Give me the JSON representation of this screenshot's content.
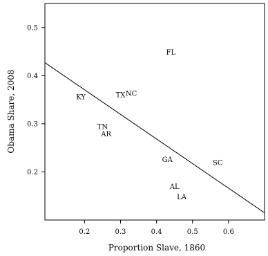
{
  "chart_data": {
    "type": "scatter",
    "xlabel": "Proportion Slave, 1860",
    "ylabel": "Obama Share, 2008",
    "xlim": [
      0.09,
      0.7
    ],
    "ylim": [
      0.1,
      0.55
    ],
    "x_ticks": [
      0.2,
      0.3,
      0.4,
      0.5,
      0.6
    ],
    "x_tick_labels": [
      "0.2",
      "0.3",
      "0.4",
      "0.5",
      "0.6"
    ],
    "y_ticks": [
      0.2,
      0.3,
      0.4,
      0.5
    ],
    "y_tick_labels": [
      "0.2",
      "0.3",
      "0.4",
      "0.5"
    ],
    "points": [
      {
        "label": "KY",
        "x": 0.19,
        "y": 0.356
      },
      {
        "label": "TX",
        "x": 0.3,
        "y": 0.36
      },
      {
        "label": "NC",
        "x": 0.33,
        "y": 0.363
      },
      {
        "label": "TN",
        "x": 0.25,
        "y": 0.294
      },
      {
        "label": "AR",
        "x": 0.26,
        "y": 0.279
      },
      {
        "label": "FL",
        "x": 0.44,
        "y": 0.449
      },
      {
        "label": "GA",
        "x": 0.43,
        "y": 0.226
      },
      {
        "label": "SC",
        "x": 0.57,
        "y": 0.219
      },
      {
        "label": "AL",
        "x": 0.45,
        "y": 0.17
      },
      {
        "label": "LA",
        "x": 0.47,
        "y": 0.148
      }
    ],
    "fit_line": {
      "x": [
        0.09,
        0.7
      ],
      "y": [
        0.427,
        0.115
      ]
    },
    "grid": false,
    "legend": "none"
  }
}
